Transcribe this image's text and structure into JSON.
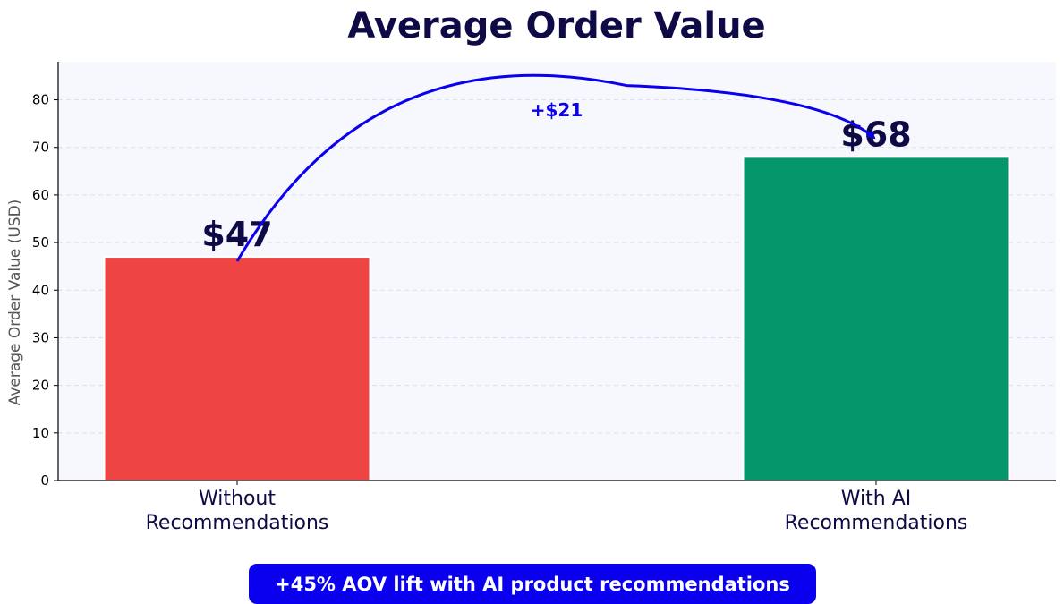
{
  "chart_data": {
    "type": "bar",
    "title": "Average Order Value",
    "ylabel": "Average Order Value (USD)",
    "xlabel": "",
    "categories": [
      "Without\nRecommendations",
      "With AI\nRecommendations"
    ],
    "values": [
      47,
      68
    ],
    "value_labels": [
      "$47",
      "$68"
    ],
    "bar_colors": [
      "#ef4444",
      "#059669"
    ],
    "ylim": [
      0,
      88
    ],
    "yticks": [
      0,
      10,
      20,
      30,
      40,
      50,
      60,
      70,
      80
    ],
    "grid": "horizontal dashed",
    "annotation": {
      "label": "+$21",
      "from": 47,
      "to": 68,
      "style": "curved arrow"
    }
  },
  "banner": {
    "text": "+45% AOV lift with AI product recommendations"
  },
  "colors": {
    "title": "#0d0a45",
    "text_dark": "#0d0a45",
    "accent_blue": "#0a00ee",
    "plot_background": "#f7f8fd",
    "grid": "#dde0ea"
  }
}
